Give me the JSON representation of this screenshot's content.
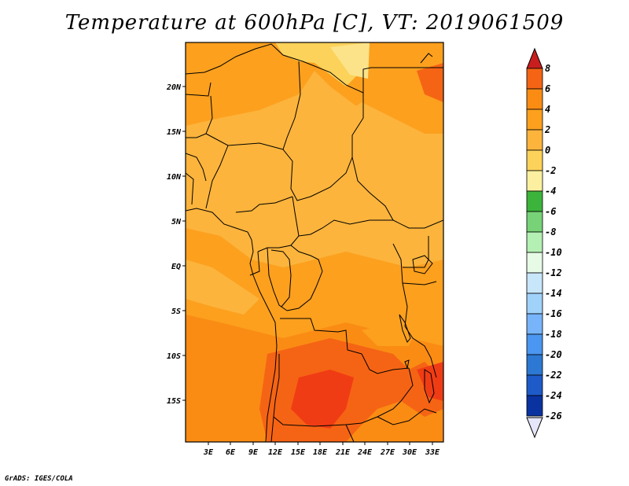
{
  "title": "Temperature at 600hPa [C], VT: 2019061509",
  "credit": "GrADS: IGES/COLA",
  "map": {
    "lat_labels": [
      "20N",
      "15N",
      "10N",
      "5N",
      "EQ",
      "5S",
      "10S",
      "15S"
    ],
    "lon_labels": [
      "3E",
      "6E",
      "9E",
      "12E",
      "15E",
      "18E",
      "21E",
      "24E",
      "27E",
      "30E",
      "33E"
    ],
    "lat_range": [
      -19.5,
      24.5
    ],
    "lon_range": [
      0,
      34.5
    ]
  },
  "colorbar": {
    "labels": [
      "8",
      "6",
      "4",
      "2",
      "0",
      "-2",
      "-4",
      "-6",
      "-8",
      "-10",
      "-12",
      "-14",
      "-16",
      "-18",
      "-20",
      "-22",
      "-24",
      "-26"
    ],
    "colors": [
      "#f03c14",
      "#f56414",
      "#fa8c14",
      "#fca01e",
      "#fcb43c",
      "#fcd25a",
      "#fcf0a0",
      "#3cb43c",
      "#78d278",
      "#b4f0b4",
      "#e6fae6",
      "#c8e6fa",
      "#a0d2fa",
      "#78b4fa",
      "#4b96f0",
      "#2d78d2",
      "#1e5ac8",
      "#0a32a0",
      "#0a1464"
    ],
    "top_cap_color": "#c81e1e",
    "bottom_cap_color": "#e6e6fa"
  }
}
